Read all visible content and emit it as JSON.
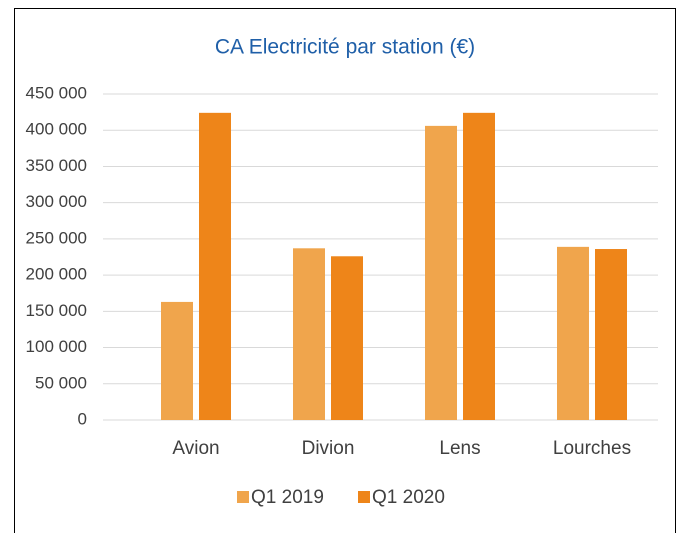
{
  "chart_data": {
    "type": "bar",
    "title": "CA Electricité par station (€)",
    "categories": [
      "Avion",
      "Divion",
      "Lens",
      "Lourches"
    ],
    "series": [
      {
        "name": "Q1 2019",
        "color": "#f0a54c",
        "values": [
          163000,
          237000,
          406000,
          239000
        ]
      },
      {
        "name": "Q1 2020",
        "color": "#ee8519",
        "values": [
          424000,
          226000,
          424000,
          236000
        ]
      }
    ],
    "ylim": [
      0,
      450000
    ],
    "yticks": [
      0,
      {
        "value": 50000,
        "label": "50 000"
      },
      {
        "value": 100000,
        "label": "100 000"
      },
      {
        "value": 150000,
        "label": "150 000"
      },
      {
        "value": 200000,
        "label": "200 000"
      },
      {
        "value": 250000,
        "label": "250 000"
      },
      {
        "value": 300000,
        "label": "300 000"
      },
      {
        "value": 350000,
        "label": "350 000"
      },
      {
        "value": 400000,
        "label": "400 000"
      },
      {
        "value": 450000,
        "label": "450 000"
      }
    ],
    "grid": true,
    "legend": "bottom"
  }
}
